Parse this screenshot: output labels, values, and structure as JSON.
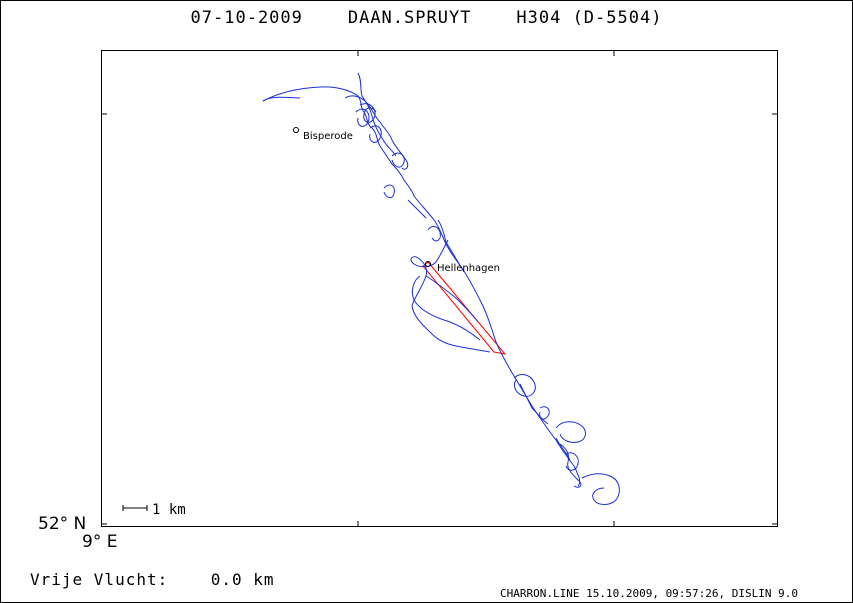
{
  "header": {
    "date": "07-10-2009",
    "pilot": "DAAN.SPRUYT",
    "glider": "H304 (D-5504)"
  },
  "map": {
    "latitude_label": "52° N",
    "longitude_label": "9° E",
    "scale_label": "1 km",
    "track_color": "#1a2fd1",
    "task_color": "#ff0000",
    "waypoints": [
      {
        "name": "Bisperode"
      },
      {
        "name": "Hellenhagen"
      }
    ]
  },
  "stats": {
    "label": "Vrije Vlucht:",
    "value": "0.0 km"
  },
  "footer": {
    "text": "CHARRON.LINE 15.10.2009, 09:57:26, DISLIN 9.0"
  }
}
